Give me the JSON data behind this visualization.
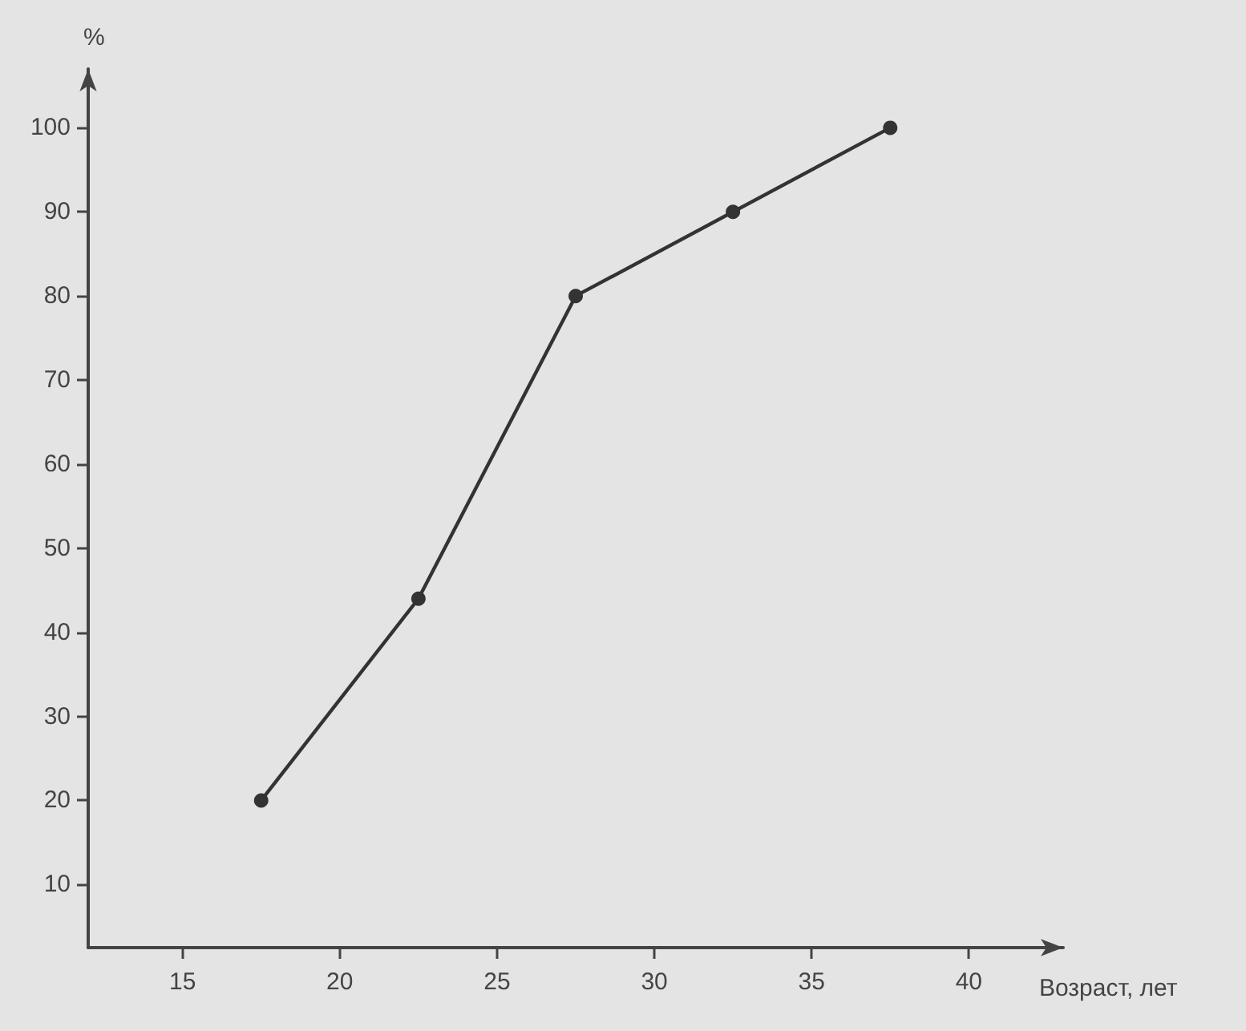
{
  "chart_data": {
    "type": "line",
    "xlabel": "Возраст, лет",
    "ylabel": "%",
    "x": [
      17.5,
      22.5,
      27.5,
      32.5,
      37.5
    ],
    "series": [
      {
        "color": "#333333",
        "values": [
          20,
          44,
          80,
          90,
          100
        ]
      }
    ],
    "xlim": [
      12,
      43
    ],
    "xticks": [
      15,
      20,
      25,
      30,
      35,
      40
    ],
    "ylim": [
      2.5,
      107
    ],
    "yticks": [
      10,
      20,
      30,
      40,
      50,
      60,
      70,
      80,
      90,
      100
    ],
    "marker": "circle",
    "line_style": "solid"
  }
}
